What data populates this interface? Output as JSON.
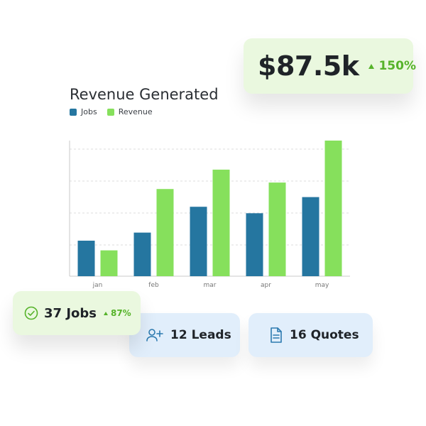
{
  "revenue_card": {
    "amount": "$87.5k",
    "change": "150%"
  },
  "chart_data": {
    "type": "bar",
    "title": "Revenue Generated",
    "categories": [
      "jan",
      "feb",
      "mar",
      "apr",
      "may"
    ],
    "series": [
      {
        "name": "Jobs",
        "color": "#2576a0",
        "values": [
          22,
          27,
          43,
          39,
          49
        ]
      },
      {
        "name": "Revenue",
        "color": "#86e05c",
        "values": [
          16,
          54,
          66,
          58,
          84
        ]
      }
    ],
    "ylim": [
      0,
      84
    ],
    "grid": true,
    "legend_position": "top-left"
  },
  "jobs_card": {
    "label": "37 Jobs",
    "change": "87%"
  },
  "leads_card": {
    "label": "12 Leads"
  },
  "quotes_card": {
    "label": "16 Quotes"
  },
  "colors": {
    "accent_green": "#56b32a",
    "green_card": "#eaf8df",
    "blue_card": "#e1eefb"
  },
  "icons": {
    "jobs": "check-circle-icon",
    "leads": "user-plus-icon",
    "quotes": "document-icon",
    "trend": "triangle-up-icon"
  }
}
